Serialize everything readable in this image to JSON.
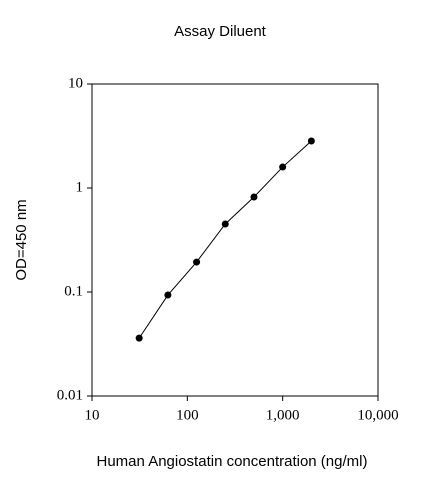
{
  "chart_data": {
    "type": "line",
    "title": "Assay Diluent",
    "x_label": "Human Angiostatin concentration (ng/ml)",
    "y_label": "OD=450 nm",
    "x": [
      31.25,
      62.5,
      125,
      250,
      500,
      1000,
      2000
    ],
    "series": [
      {
        "name": "Assay Diluent",
        "color": "#000000",
        "values": [
          0.036,
          0.0935,
          0.194,
          0.451,
          0.82,
          1.59,
          2.83
        ]
      }
    ],
    "xlim": [
      10,
      10000
    ],
    "ylim": [
      0.01,
      10
    ],
    "x_log": true,
    "y_log": true,
    "xticks": [
      10,
      100,
      {
        "value": 1000,
        "label": "1,000"
      },
      {
        "value": 10000,
        "label": "10,000"
      }
    ],
    "yticks": [
      0.01,
      0.1,
      1,
      10
    ]
  }
}
